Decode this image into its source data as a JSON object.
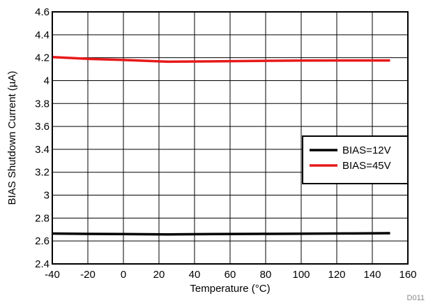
{
  "chart_data": {
    "type": "line",
    "xlabel": "Temperature (°C)",
    "ylabel": "BIAS Shutdown Current (µA)",
    "xlim": [
      -40,
      160
    ],
    "ylim": [
      2.4,
      4.6
    ],
    "xticks": [
      -40,
      -20,
      0,
      20,
      40,
      60,
      80,
      100,
      120,
      140,
      160
    ],
    "yticks": [
      2.4,
      2.6,
      2.8,
      3,
      3.2,
      3.4,
      3.6,
      3.8,
      4,
      4.2,
      4.4,
      4.6
    ],
    "grid": true,
    "legend_position": "right",
    "series": [
      {
        "name": "BIAS=12V",
        "color": "#000000",
        "x": [
          -40,
          -20,
          0,
          25,
          50,
          75,
          100,
          125,
          150
        ],
        "y": [
          2.665,
          2.662,
          2.66,
          2.658,
          2.66,
          2.662,
          2.664,
          2.666,
          2.668
        ]
      },
      {
        "name": "BIAS=45V",
        "color": "#e8191a",
        "x": [
          -40,
          -20,
          0,
          25,
          50,
          75,
          100,
          125,
          150
        ],
        "y": [
          4.205,
          4.19,
          4.18,
          4.165,
          4.168,
          4.172,
          4.175,
          4.176,
          4.176
        ]
      }
    ],
    "code": "D011"
  }
}
